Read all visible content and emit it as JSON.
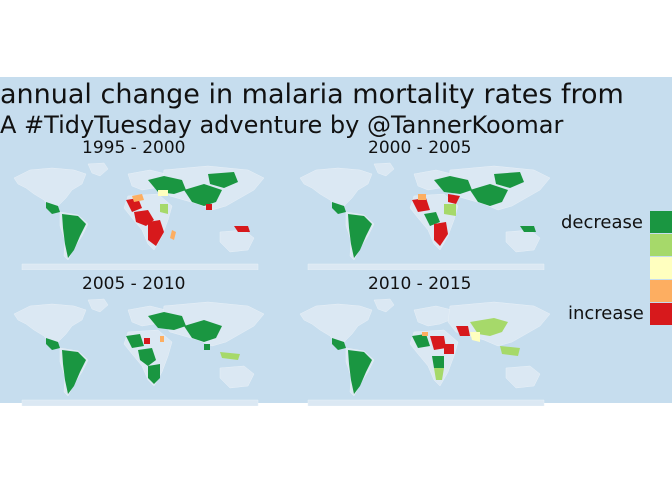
{
  "title": "annual change in malaria mortality rates from",
  "subtitle": "A #TidyTuesday adventure by @TannerKoomar",
  "colors": {
    "background": "#c6ddee",
    "land": "#dbe8f3",
    "decrease": "#1a9641",
    "slight_decrease": "#a6d96a",
    "neutral": "#ffffbf",
    "slight_increase": "#fdae61",
    "increase": "#d7191c"
  },
  "panels": [
    {
      "label": "1995 - 2000"
    },
    {
      "label": "2000 - 2005"
    },
    {
      "label": "2005 - 2010"
    },
    {
      "label": "2010 - 2015"
    }
  ],
  "legend": {
    "low_label": "decrease",
    "high_label": "increase"
  }
}
